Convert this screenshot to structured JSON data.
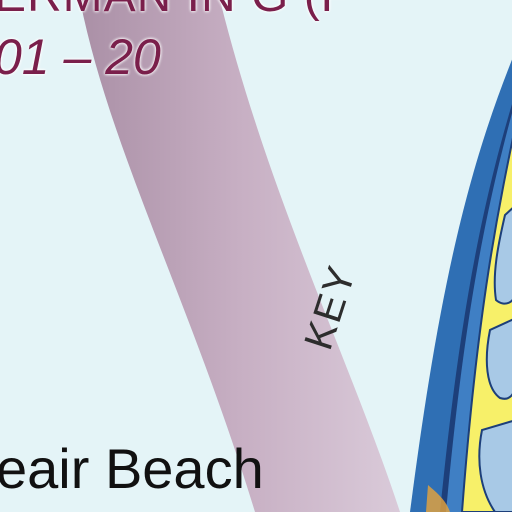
{
  "map": {
    "title_fragment": "ERMAN IN G (F",
    "years": "01 – 20",
    "key_label": "KEY",
    "beach_label": "eair Beach",
    "colors": {
      "water": "#e4f4f7",
      "band": "#c2a0b8",
      "island_fill": "#f7f069",
      "island_border": "#2f6fb4",
      "title_text": "#7a1f4b"
    }
  }
}
